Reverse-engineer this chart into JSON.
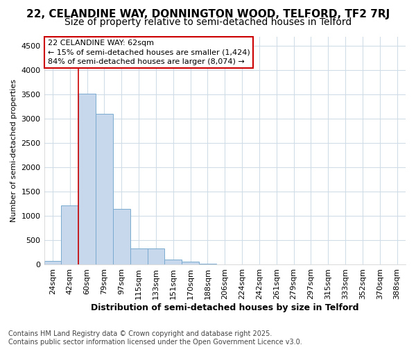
{
  "title_line1": "22, CELANDINE WAY, DONNINGTON WOOD, TELFORD, TF2 7RJ",
  "title_line2": "Size of property relative to semi-detached houses in Telford",
  "xlabel": "Distribution of semi-detached houses by size in Telford",
  "ylabel": "Number of semi-detached properties",
  "footer": "Contains HM Land Registry data © Crown copyright and database right 2025.\nContains public sector information licensed under the Open Government Licence v3.0.",
  "categories": [
    "24sqm",
    "42sqm",
    "60sqm",
    "79sqm",
    "97sqm",
    "115sqm",
    "133sqm",
    "151sqm",
    "170sqm",
    "188sqm",
    "206sqm",
    "224sqm",
    "242sqm",
    "261sqm",
    "279sqm",
    "297sqm",
    "315sqm",
    "333sqm",
    "352sqm",
    "370sqm",
    "388sqm"
  ],
  "values": [
    80,
    1220,
    3520,
    3100,
    1150,
    340,
    340,
    100,
    60,
    20,
    5,
    3,
    0,
    0,
    0,
    0,
    0,
    0,
    0,
    0,
    0
  ],
  "bar_color": "#c8d8ec",
  "bar_edge_color": "#7aaad0",
  "vline_color": "#cc0000",
  "annotation_box_edge": "#cc0000",
  "annotation_text_line1": "22 CELANDINE WAY: 62sqm",
  "annotation_text_line2": "← 15% of semi-detached houses are smaller (1,424)",
  "annotation_text_line3": "84% of semi-detached houses are larger (8,074) →",
  "ylim": [
    0,
    4700
  ],
  "yticks": [
    0,
    500,
    1000,
    1500,
    2000,
    2500,
    3000,
    3500,
    4000,
    4500
  ],
  "bg_color": "#ffffff",
  "plot_bg_color": "#ffffff",
  "grid_color": "#d0dce8",
  "title1_fontsize": 11,
  "title2_fontsize": 10,
  "xlabel_fontsize": 9,
  "ylabel_fontsize": 8,
  "tick_fontsize": 8,
  "footer_fontsize": 7
}
